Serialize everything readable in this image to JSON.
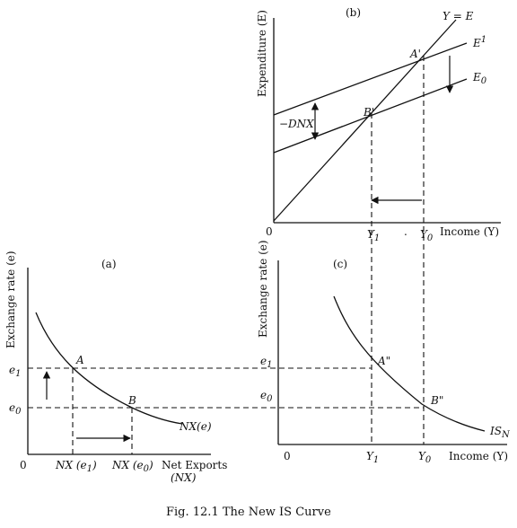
{
  "caption": "Fig. 12.1 The New IS Curve",
  "panel_b": {
    "label": "(b)",
    "y_axis_label": "Expenditure (E)",
    "x_axis_label": "Income (Y)",
    "origin": "0",
    "line_ye": "Y = E",
    "curve_e1": "E",
    "curve_e1_sub": "1",
    "curve_e0": "E",
    "curve_e0_sub": "0",
    "point_a": "A'",
    "point_b": "B'",
    "shift_label": "−DNX",
    "tick_y1": "Y",
    "tick_y1_sub": "1",
    "tick_y0": "Y",
    "tick_y0_sub": "0",
    "dot": "."
  },
  "panel_a": {
    "label": "(a)",
    "y_axis_label": "Exchange rate (e)",
    "x_axis_label_1": "Net Exports",
    "x_axis_label_2": "(NX)",
    "origin": "0",
    "tick_e1": "e",
    "tick_e1_sub": "1",
    "tick_e0": "e",
    "tick_e0_sub": "0",
    "point_a": "A",
    "point_b": "B",
    "curve": "NX(e)",
    "tick_nx1": "NX (e",
    "tick_nx1_sub": "1",
    "tick_nx0": "NX (e",
    "tick_nx0_sub": "0",
    "close_paren": ")"
  },
  "panel_c": {
    "label": "(c)",
    "y_axis_label": "Exchange rate (e)",
    "x_axis_label": "Income (Y)",
    "origin": "0",
    "tick_e1": "e",
    "tick_e1_sub": "1",
    "tick_e0": "e",
    "tick_e0_sub": "0",
    "point_a": "A\"",
    "point_b": "B\"",
    "curve": "IS",
    "curve_sub": "N",
    "tick_y1": "Y",
    "tick_y1_sub": "1",
    "tick_y0": "Y",
    "tick_y0_sub": "0"
  }
}
